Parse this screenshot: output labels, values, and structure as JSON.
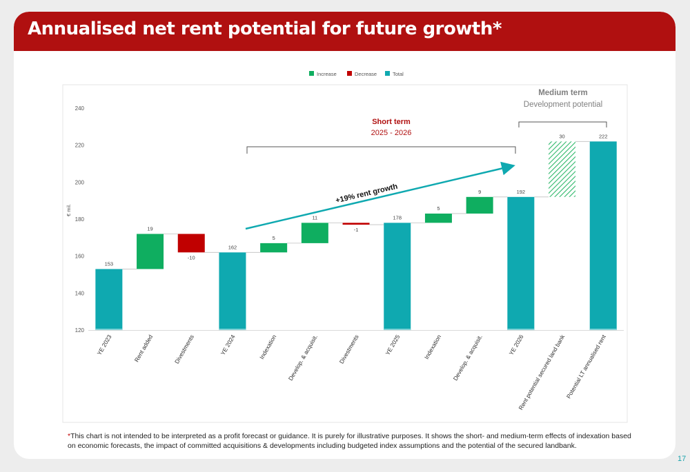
{
  "slide": {
    "title": "Annualised net rent potential for future growth*",
    "page_number": "17",
    "footnote_star": "*",
    "footnote_text": "This chart is not intended to be interpreted as a profit forecast or guidance. It is purely for illustrative purposes. It shows the short- and medium-term effects of indexation based on economic forecasts, the impact of committed acquisitions & developments including budgeted index assumptions and the potential of the secured landbank."
  },
  "chart_data": {
    "type": "waterfall",
    "ylabel": "€ mil.",
    "ylim": [
      120,
      240
    ],
    "yticks": [
      120,
      140,
      160,
      180,
      200,
      220,
      240
    ],
    "grid": false,
    "legend": [
      "Increase",
      "Decrease",
      "Total"
    ],
    "legend_position": "top",
    "colors": {
      "increase": "#0fae60",
      "decrease": "#c00000",
      "total": "#0fa9b0",
      "potential": "#2eb86a"
    },
    "bars": [
      {
        "category": "YE 2023",
        "kind": "total",
        "value": 153,
        "label": "153"
      },
      {
        "category": "Rent added",
        "kind": "increase",
        "value": 19,
        "label": "19"
      },
      {
        "category": "Divestments",
        "kind": "decrease",
        "value": -10,
        "label": "-10"
      },
      {
        "category": "YE 2024",
        "kind": "total",
        "value": 162,
        "label": "162"
      },
      {
        "category": "Indexation",
        "kind": "increase",
        "value": 5,
        "label": "5"
      },
      {
        "category": "Develop. & acquisit.",
        "kind": "increase",
        "value": 11,
        "label": "11"
      },
      {
        "category": "Divestments",
        "kind": "decrease",
        "value": -1,
        "label": "-1"
      },
      {
        "category": "YE 2025",
        "kind": "total",
        "value": 178,
        "label": "178"
      },
      {
        "category": "Indexation",
        "kind": "increase",
        "value": 5,
        "label": "5"
      },
      {
        "category": "Develop. & acquisit.",
        "kind": "increase",
        "value": 9,
        "label": "9"
      },
      {
        "category": "YE 2026",
        "kind": "total",
        "value": 192,
        "label": "192"
      },
      {
        "category": "Rent potential  secured land bank",
        "kind": "potential",
        "value": 30,
        "label": "30"
      },
      {
        "category": "Potential LT annualised rent",
        "kind": "total",
        "value": 222,
        "label": "222"
      }
    ],
    "annotations": {
      "short_term_title": "Short term",
      "short_term_period": "2025 - 2026",
      "medium_term_title": "Medium term",
      "medium_term_subtitle": "Development potential",
      "growth_arrow": "+19% rent growth"
    }
  }
}
